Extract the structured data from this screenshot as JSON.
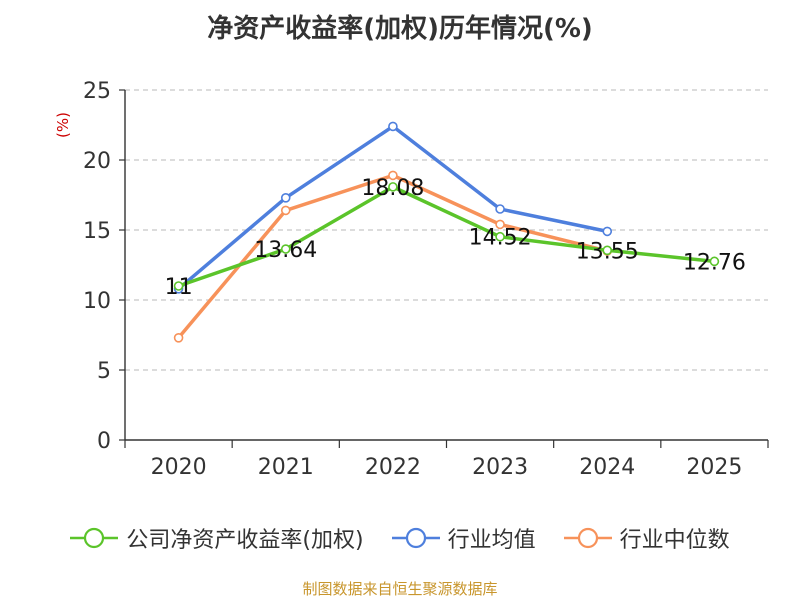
{
  "chart_data": {
    "type": "line",
    "title": "净资产收益率(加权)历年情况(%)",
    "ylabel": "(%)",
    "xlabel": "",
    "categories": [
      "2020",
      "2021",
      "2022",
      "2023",
      "2024",
      "2025"
    ],
    "ylim": [
      0,
      25
    ],
    "yticks": [
      0,
      5,
      10,
      15,
      20,
      25
    ],
    "grid": true,
    "legend_position": "bottom",
    "series": [
      {
        "name": "公司净资产收益率(加权)",
        "color": "#5bc42a",
        "values": [
          11,
          13.64,
          18.08,
          14.52,
          13.55,
          12.76
        ],
        "labels": [
          "11",
          "13.64",
          "18.08",
          "14.52",
          "13.55",
          "12.76"
        ]
      },
      {
        "name": "行业均值",
        "color": "#4e7fdd",
        "values": [
          10.8,
          17.3,
          22.4,
          16.5,
          14.9,
          null
        ],
        "labels": null
      },
      {
        "name": "行业中位数",
        "color": "#f7925a",
        "values": [
          7.3,
          16.4,
          18.9,
          15.4,
          13.5,
          null
        ],
        "labels": null
      }
    ]
  },
  "footer": "制图数据来自恒生聚源数据库"
}
